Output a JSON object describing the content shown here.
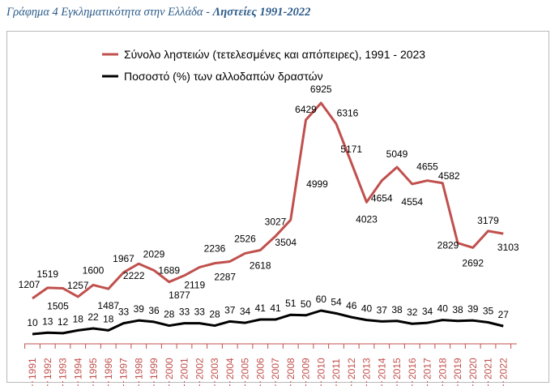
{
  "caption": {
    "prefix": "Γράφημα 4 Εγκληματικότητα στην Ελλάδα - ",
    "title": "Ληστείες 1991-2022"
  },
  "chart_data": {
    "type": "line",
    "categories": [
      "1991",
      "1992",
      "1993",
      "1994",
      "1995",
      "1996",
      "1997",
      "1998",
      "1999",
      "2000",
      "2001",
      "2002",
      "2003",
      "2004",
      "2005",
      "2006",
      "2007",
      "2008",
      "2009",
      "2010",
      "2011",
      "2012",
      "2013",
      "2014",
      "2015",
      "2016",
      "2017",
      "2018",
      "2019",
      "2020",
      "2021",
      "2022"
    ],
    "series": [
      {
        "name": "Σύνολο ληστειών (τετελεσμένες και απόπειρες), 1991 - 2023",
        "color": "#c0504d",
        "values": [
          1207,
          1519,
          1505,
          1257,
          1600,
          1487,
          1967,
          2222,
          2029,
          1689,
          1877,
          2119,
          2236,
          2287,
          2526,
          2618,
          3027,
          3504,
          6429,
          6925,
          6316,
          5171,
          4023,
          4654,
          5049,
          4554,
          4655,
          4582,
          2829,
          2692,
          3179,
          3103
        ],
        "labels": [
          "1207",
          "1519",
          "1505",
          "1257",
          "1600",
          "1487",
          "1967",
          "2222",
          "2029",
          "1689",
          "1877",
          "2119",
          "2236",
          "2287",
          "2526",
          "2618",
          "3027",
          "3504",
          "6429",
          "6925",
          "6316",
          "5171",
          "4023",
          "4654",
          "5049",
          "4554",
          "4655",
          "4582",
          "2829",
          "2692",
          "3179",
          "3103"
        ]
      },
      {
        "name": "Ποσοστό (%) των αλλοδαπών δραστών",
        "color": "#000000",
        "values": [
          10,
          13,
          12,
          18,
          22,
          18,
          33,
          39,
          36,
          28,
          33,
          33,
          28,
          37,
          34,
          41,
          41,
          51,
          50,
          60,
          54,
          46,
          40,
          37,
          38,
          32,
          34,
          40,
          38,
          39,
          35,
          27
        ],
        "labels": [
          "10",
          "13",
          "12",
          "18",
          "22",
          "18",
          "33",
          "39",
          "36",
          "28",
          "33",
          "33",
          "28",
          "37",
          "34",
          "41",
          "41",
          "51",
          "50",
          "60",
          "54",
          "46",
          "40",
          "37",
          "38",
          "32",
          "34",
          "40",
          "38",
          "39",
          "35",
          "27"
        ]
      }
    ],
    "extra_labels": [
      "4999"
    ],
    "xlabel": "",
    "ylabel": "",
    "legend": "top-center"
  }
}
